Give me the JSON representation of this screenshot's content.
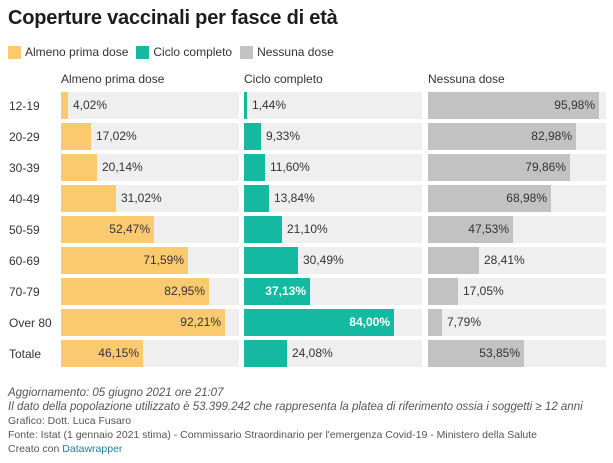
{
  "title": "Coperture vaccinali per fasce di età",
  "legend": [
    {
      "label": "Almeno prima dose",
      "color": "#fcca6e"
    },
    {
      "label": "Ciclo completo",
      "color": "#15b8a0"
    },
    {
      "label": "Nessuna dose",
      "color": "#c2c2c2"
    }
  ],
  "chart_data": {
    "type": "bar",
    "title": "Coperture vaccinali per fasce di età",
    "categories": [
      "12-19",
      "20-29",
      "30-39",
      "40-49",
      "50-59",
      "60-69",
      "70-79",
      "Over 80",
      "Totale"
    ],
    "ylim": [
      0,
      100
    ],
    "series": [
      {
        "name": "Almeno prima dose",
        "color": "#fcca6e",
        "values": [
          4.02,
          17.02,
          20.14,
          31.02,
          52.47,
          71.59,
          82.95,
          92.21,
          46.15
        ],
        "labels": [
          "4,02%",
          "17,02%",
          "20,14%",
          "31,02%",
          "52,47%",
          "71,59%",
          "82,95%",
          "92,21%",
          "46,15%"
        ]
      },
      {
        "name": "Ciclo completo",
        "color": "#15b8a0",
        "values": [
          1.44,
          9.33,
          11.6,
          13.84,
          21.1,
          30.49,
          37.13,
          84.0,
          24.08
        ],
        "labels": [
          "1,44%",
          "9,33%",
          "11,60%",
          "13,84%",
          "21,10%",
          "30,49%",
          "37,13%",
          "84,00%",
          "24,08%"
        ]
      },
      {
        "name": "Nessuna dose",
        "color": "#c2c2c2",
        "values": [
          95.98,
          82.98,
          79.86,
          68.98,
          47.53,
          28.41,
          17.05,
          7.79,
          53.85
        ],
        "labels": [
          "95,98%",
          "82,98%",
          "79,86%",
          "68,98%",
          "47,53%",
          "28,41%",
          "17,05%",
          "7,79%",
          "53,85%"
        ]
      }
    ]
  },
  "footer": {
    "updated": "Aggiornamento: 05 giugno 2021 ore 21:07",
    "note": "Il dato della popolazione utilizzato è 53.399.242 che rappresenta la platea di riferimento ossia i soggetti ≥ 12 anni",
    "author": "Grafico: Dott. Luca Fusaro",
    "source": "Fonte: Istat (1 gennaio 2021 stima) - Commissario Straordinario per l'emergenza Covid-19 - Ministero della Salute",
    "created_prefix": "Creato con",
    "created_link": "Datawrapper"
  }
}
